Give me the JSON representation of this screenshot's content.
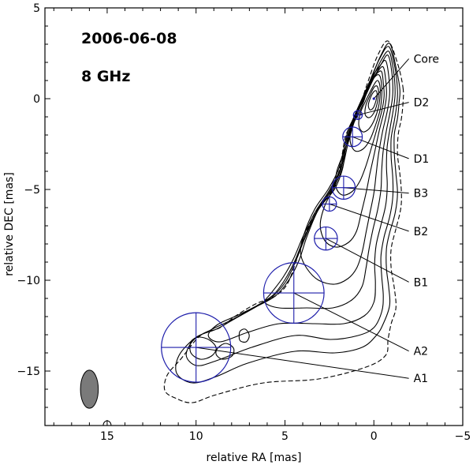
{
  "chart_data": {
    "type": "contour",
    "annotation_date": "2006-06-08",
    "annotation_freq": "8 GHz",
    "xlabel": "relative RA [mas]",
    "ylabel": "relative DEC [mas]",
    "xlim": [
      18.5,
      -5
    ],
    "ylim": [
      -18,
      5
    ],
    "x_ticks": [
      {
        "value": 15,
        "label": "15"
      },
      {
        "value": 10,
        "label": "10"
      },
      {
        "value": 5,
        "label": "5"
      },
      {
        "value": 0,
        "label": "0"
      },
      {
        "value": -5,
        "label": "−5"
      }
    ],
    "y_ticks": [
      {
        "value": 5,
        "label": "5"
      },
      {
        "value": 0,
        "label": "0"
      },
      {
        "value": -5,
        "label": "−5"
      },
      {
        "value": -10,
        "label": "−10"
      },
      {
        "value": -15,
        "label": "−15"
      }
    ],
    "components": [
      {
        "name": "Core",
        "x": 0.0,
        "y": 0.0,
        "size": 0.1,
        "label_x": -2.5,
        "label_y": 2.2
      },
      {
        "name": "D2",
        "x": 0.9,
        "y": -0.9,
        "size": 0.5,
        "label_x": -2.5,
        "label_y": -0.2
      },
      {
        "name": "D1",
        "x": 1.2,
        "y": -2.1,
        "size": 1.1,
        "label_x": -2.5,
        "label_y": -3.3
      },
      {
        "name": "B3",
        "x": 1.7,
        "y": -4.9,
        "size": 1.3,
        "label_x": -2.5,
        "label_y": -5.2
      },
      {
        "name": "B2",
        "x": 2.5,
        "y": -5.8,
        "size": 0.8,
        "label_x": -2.5,
        "label_y": -7.3
      },
      {
        "name": "B1",
        "x": 2.7,
        "y": -7.7,
        "size": 1.3,
        "label_x": -2.5,
        "label_y": -10.1
      },
      {
        "name": "A2",
        "x": 4.5,
        "y": -10.7,
        "size": 3.4,
        "label_x": -2.5,
        "label_y": -13.9
      },
      {
        "name": "A1",
        "x": 10.0,
        "y": -13.7,
        "size": 3.9,
        "label_x": -2.5,
        "label_y": -15.4
      }
    ],
    "beam": {
      "x": 16.0,
      "y": -16.0,
      "major": 2.1,
      "minor": 1.0,
      "pa_deg": 0
    }
  }
}
